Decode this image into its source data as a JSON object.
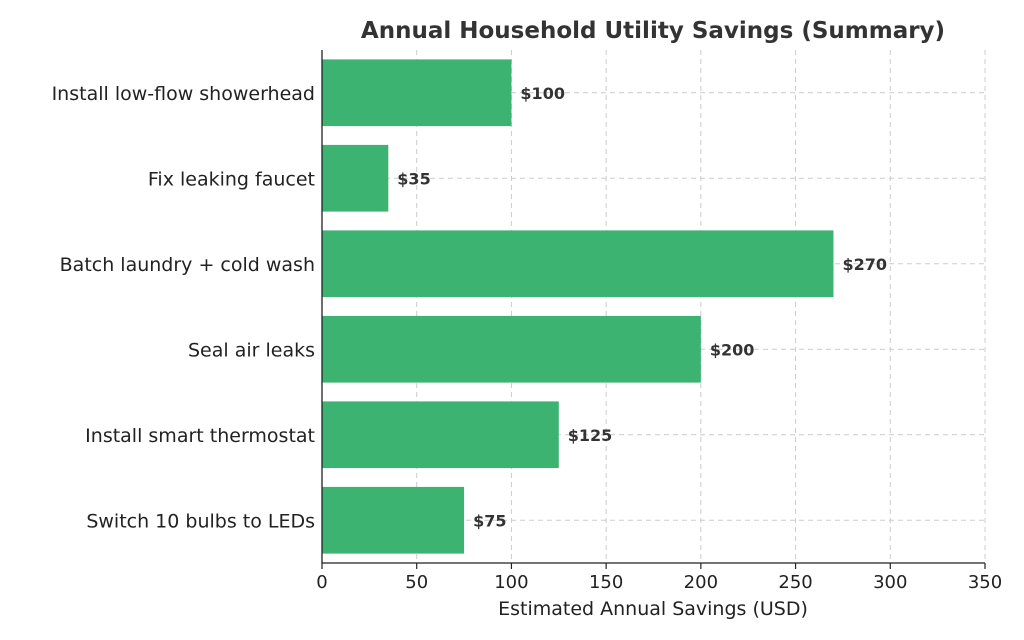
{
  "chart_data": {
    "type": "bar",
    "orientation": "horizontal",
    "title": "Annual Household Utility Savings (Summary)",
    "xlabel": "Estimated Annual Savings (USD)",
    "ylabel": "",
    "categories": [
      "Install low-flow showerhead",
      "Fix leaking faucet",
      "Batch laundry + cold wash",
      "Seal air leaks",
      "Install smart thermostat",
      "Switch 10 bulbs to LEDs"
    ],
    "values": [
      100,
      35,
      270,
      200,
      125,
      75
    ],
    "value_labels": [
      "$100",
      "$35",
      "$270",
      "$200",
      "$125",
      "$75"
    ],
    "xlim": [
      0,
      350
    ],
    "xticks": [
      0,
      50,
      100,
      150,
      200,
      250,
      300,
      350
    ],
    "grid": true,
    "bar_color": "#3cb371"
  }
}
